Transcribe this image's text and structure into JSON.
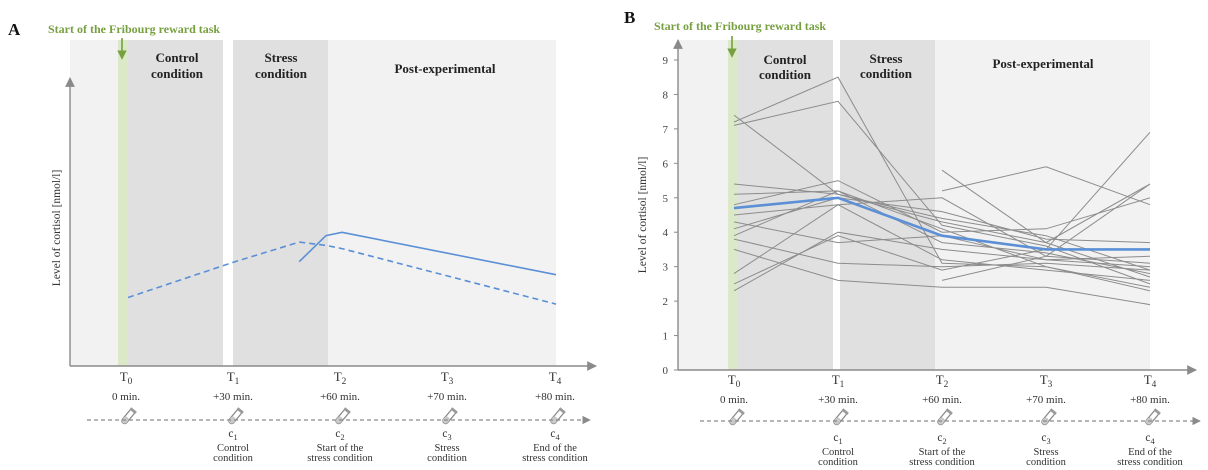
{
  "colors": {
    "accent_blue": "#5b8fd6",
    "individual_gray": "#8c8c8c",
    "start_green": "#77a040",
    "control_bg": "#e0e0e0",
    "stress_bg": "#e0e0e0",
    "post_bg": "#f2f2f2"
  },
  "panels": {
    "a": {
      "label": "A"
    },
    "b": {
      "label": "B"
    }
  },
  "phases": {
    "start_task": "Start of the Fribourg reward task",
    "control": [
      "Control",
      "condition"
    ],
    "stress": [
      "Stress",
      "condition"
    ],
    "post": "Post-experimental"
  },
  "timepoints": [
    {
      "main": "T",
      "sub": "0",
      "minutes": "0 min."
    },
    {
      "main": "T",
      "sub": "1",
      "minutes": "+30 min."
    },
    {
      "main": "T",
      "sub": "2",
      "minutes": "+60 min."
    },
    {
      "main": "T",
      "sub": "3",
      "minutes": "+70 min."
    },
    {
      "main": "T",
      "sub": "4",
      "minutes": "+80 min."
    }
  ],
  "samples": [
    {
      "main": "c",
      "sub": "1",
      "desc": [
        "Control",
        "condition"
      ]
    },
    {
      "main": "c",
      "sub": "2",
      "desc": [
        "Start of the",
        "stress condition"
      ]
    },
    {
      "main": "c",
      "sub": "3",
      "desc": [
        "Stress",
        "condition"
      ]
    },
    {
      "main": "c",
      "sub": "4",
      "desc": [
        "End of the",
        "stress condition"
      ]
    }
  ],
  "chart_data": [
    {
      "type": "line",
      "panel": "A",
      "title": "",
      "xlabel": "",
      "ylabel": "Level of cortisol [nmol/l]",
      "x_labels": [
        "T0",
        "T1",
        "T2",
        "T3",
        "T4"
      ],
      "y_ticks_shown": false,
      "series": [
        {
          "style": "solid",
          "points": [
            [
              1.6,
              0.32
            ],
            [
              1.85,
              0.4
            ],
            [
              2.0,
              0.41
            ],
            [
              4.0,
              0.28
            ]
          ]
        },
        {
          "style": "dashed",
          "points": [
            [
              0.0,
              0.21
            ],
            [
              1.0,
              0.32
            ],
            [
              1.6,
              0.38
            ],
            [
              1.85,
              0.37
            ],
            [
              2.0,
              0.36
            ],
            [
              4.0,
              0.19
            ]
          ]
        }
      ]
    },
    {
      "type": "line",
      "panel": "B",
      "title": "",
      "xlabel": "",
      "ylabel": "Level of cortisol [nmol/l]",
      "x_labels": [
        "T0",
        "T1",
        "T2",
        "T3",
        "T4"
      ],
      "x": [
        0,
        1,
        2,
        3,
        4
      ],
      "ylim": [
        0,
        9
      ],
      "y_ticks": [
        0,
        1,
        2,
        3,
        4,
        5,
        6,
        7,
        8,
        9
      ],
      "mean_series": {
        "values": [
          4.7,
          5.0,
          3.9,
          3.5,
          3.5
        ]
      },
      "individual_series": [
        [
          7.4,
          5.1,
          4.3,
          3.7,
          2.7
        ],
        [
          7.1,
          7.8,
          4.2,
          3.6,
          2.5
        ],
        [
          7.2,
          8.5,
          3.1,
          3.0,
          2.4
        ],
        [
          5.4,
          5.1,
          4.4,
          3.9,
          2.9
        ],
        [
          5.1,
          5.2,
          4.1,
          3.0,
          2.3
        ],
        [
          4.8,
          5.5,
          4.0,
          4.1,
          5.0
        ],
        [
          4.5,
          4.8,
          5.0,
          3.3,
          3.1
        ],
        [
          4.3,
          3.7,
          3.9,
          3.2,
          3.0
        ],
        [
          4.1,
          5.0,
          4.6,
          3.8,
          3.7
        ],
        [
          3.9,
          5.2,
          3.7,
          3.4,
          2.8
        ],
        [
          3.8,
          3.1,
          3.0,
          3.1,
          2.9
        ],
        [
          3.5,
          2.6,
          2.4,
          2.4,
          1.9
        ],
        [
          2.8,
          4.8,
          3.2,
          2.9,
          2.6
        ],
        [
          2.5,
          3.9,
          2.9,
          3.5,
          6.9
        ],
        [
          2.3,
          4.0,
          3.5,
          3.2,
          3.3
        ],
        [
          null,
          null,
          5.8,
          3.7,
          5.4
        ],
        [
          null,
          null,
          5.2,
          5.9,
          4.8
        ],
        [
          null,
          null,
          2.6,
          3.3,
          5.4
        ]
      ]
    }
  ]
}
